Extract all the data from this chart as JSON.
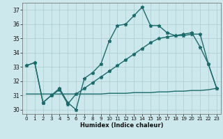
{
  "xlabel": "Humidex (Indice chaleur)",
  "xlim": [
    -0.5,
    23.5
  ],
  "ylim": [
    29.7,
    37.5
  ],
  "yticks": [
    30,
    31,
    32,
    33,
    34,
    35,
    36,
    37
  ],
  "xticks": [
    0,
    1,
    2,
    3,
    4,
    5,
    6,
    7,
    8,
    9,
    10,
    11,
    12,
    13,
    14,
    15,
    16,
    17,
    18,
    19,
    20,
    21,
    22,
    23
  ],
  "bg_color": "#cce8ec",
  "grid_color": "#aacccc",
  "line_color": "#1a6b6b",
  "series1_x": [
    0,
    1,
    2,
    3,
    4,
    5,
    6,
    7,
    8,
    9,
    10,
    11,
    12,
    13,
    14,
    15,
    16,
    17,
    18,
    19,
    20,
    21,
    22,
    23
  ],
  "series1_y": [
    33.1,
    33.3,
    30.5,
    31.0,
    31.5,
    30.5,
    30.0,
    32.2,
    32.6,
    33.2,
    34.8,
    35.9,
    36.0,
    36.6,
    37.2,
    35.9,
    35.9,
    35.4,
    35.2,
    35.3,
    35.4,
    34.4,
    33.2,
    31.5
  ],
  "series2_x": [
    0,
    1,
    2,
    3,
    4,
    5,
    6,
    7,
    8,
    9,
    10,
    11,
    12,
    13,
    14,
    15,
    16,
    17,
    18,
    19,
    20,
    21,
    22,
    23
  ],
  "series2_y": [
    33.1,
    33.3,
    30.5,
    31.0,
    31.4,
    30.4,
    31.1,
    31.5,
    31.9,
    32.3,
    32.7,
    33.1,
    33.5,
    33.9,
    34.3,
    34.7,
    35.0,
    35.1,
    35.2,
    35.2,
    35.3,
    35.3,
    33.2,
    31.5
  ],
  "series3_x": [
    0,
    4,
    5,
    6,
    7,
    8,
    9,
    10,
    11,
    12,
    13,
    14,
    15,
    16,
    17,
    18,
    19,
    20,
    21,
    22,
    23
  ],
  "series3_y": [
    31.1,
    31.1,
    31.1,
    31.1,
    31.1,
    31.1,
    31.1,
    31.15,
    31.15,
    31.15,
    31.2,
    31.2,
    31.2,
    31.25,
    31.25,
    31.3,
    31.3,
    31.35,
    31.35,
    31.4,
    31.5
  ],
  "marker_size": 3.5,
  "linewidth": 1.0
}
